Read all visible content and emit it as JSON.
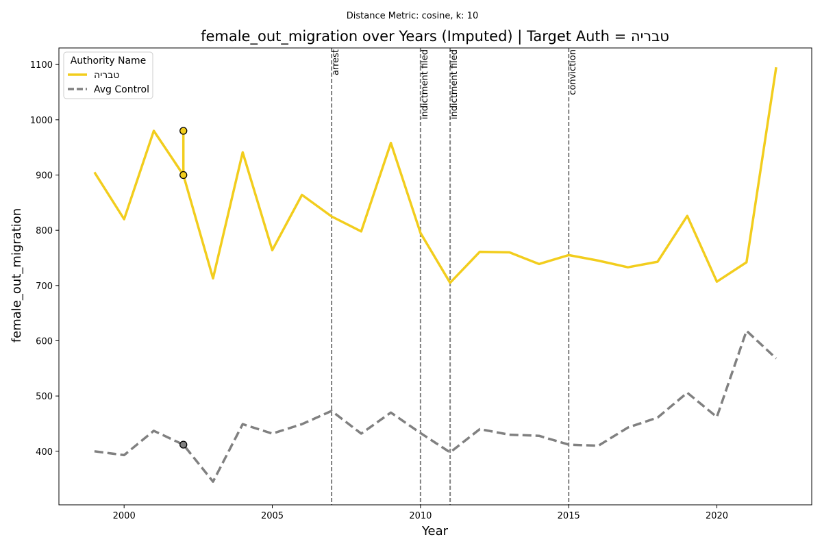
{
  "suptitle": "Distance Metric: cosine, k: 10",
  "chart_data": {
    "type": "line",
    "title": "female_out_migration over Years (Imputed) | Target Auth = טבריה",
    "xlabel": "Year",
    "ylabel": "female_out_migration",
    "xlim": [
      1997.8,
      2023.2
    ],
    "ylim": [
      303,
      1130
    ],
    "xticks": [
      2000,
      2005,
      2010,
      2015,
      2020
    ],
    "yticks": [
      400,
      500,
      600,
      700,
      800,
      900,
      1000,
      1100
    ],
    "grid": false,
    "legend": {
      "title": "Authority Name",
      "placement": "top-left",
      "entries": [
        "טבריה",
        "Avg Control"
      ]
    },
    "series": [
      {
        "name": "טבריה",
        "color": "#f2cd1d",
        "style": "solid",
        "x": [
          1999,
          2000,
          2001,
          2002,
          2002,
          2002,
          2003,
          2004,
          2005,
          2006,
          2007,
          2008,
          2009,
          2010,
          2011,
          2012,
          2013,
          2014,
          2015,
          2016,
          2017,
          2018,
          2019,
          2020,
          2021,
          2022
        ],
        "y": [
          905,
          820,
          980,
          900,
          980,
          900,
          713,
          941,
          764,
          864,
          825,
          798,
          958,
          795,
          705,
          761,
          760,
          739,
          755,
          745,
          733,
          743,
          826,
          707,
          742,
          1095
        ]
      },
      {
        "name": "Avg Control",
        "color": "#808080",
        "style": "dashed",
        "x": [
          1999,
          2000,
          2001,
          2002,
          2003,
          2004,
          2005,
          2006,
          2007,
          2008,
          2009,
          2010,
          2011,
          2012,
          2013,
          2014,
          2015,
          2016,
          2017,
          2018,
          2019,
          2020,
          2021,
          2022
        ],
        "y": [
          400,
          393,
          437,
          412,
          345,
          449,
          432,
          449,
          473,
          432,
          470,
          433,
          398,
          440,
          430,
          428,
          412,
          410,
          443,
          461,
          506,
          462,
          618,
          568
        ]
      }
    ],
    "imputed_markers": [
      {
        "series": "טבריה",
        "x": 2002,
        "y": 980,
        "color": "#f2cd1d"
      },
      {
        "series": "טבריה",
        "x": 2002,
        "y": 900,
        "color": "#f2cd1d"
      },
      {
        "series": "Avg Control",
        "x": 2002,
        "y": 412,
        "color": "#808080"
      }
    ],
    "events": [
      {
        "x": 2007,
        "label": "arrest"
      },
      {
        "x": 2010,
        "label": "indictment filed"
      },
      {
        "x": 2011,
        "label": "indictment filed"
      },
      {
        "x": 2015,
        "label": "conviction"
      }
    ]
  }
}
